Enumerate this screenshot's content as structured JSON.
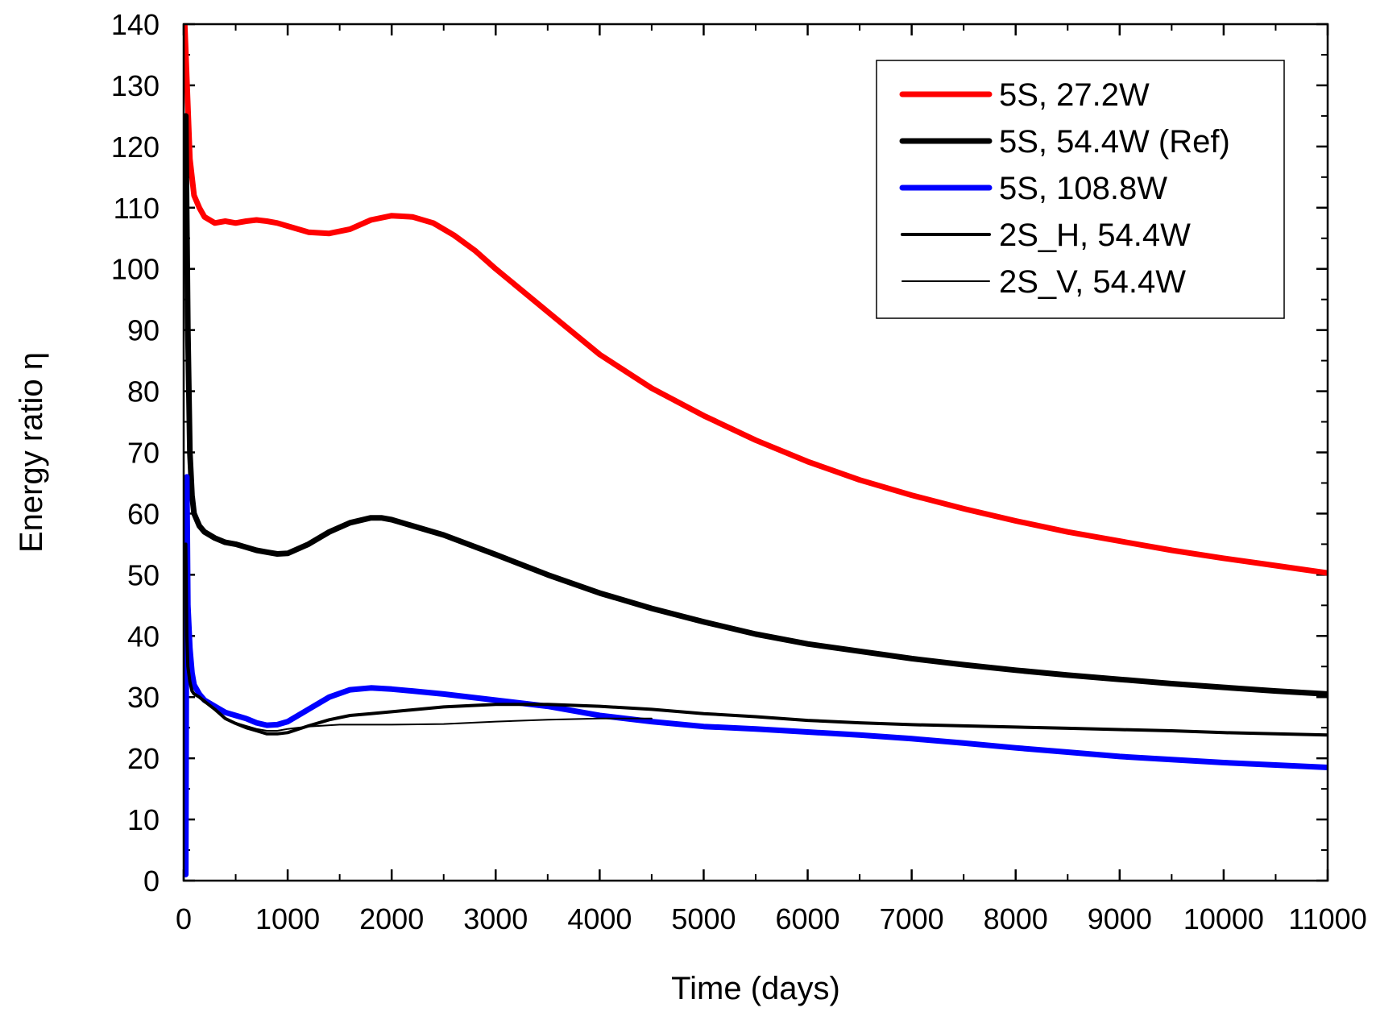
{
  "chart_data": {
    "type": "line",
    "title": "",
    "xlabel": "Time (days)",
    "ylabel": "Energy ratio η",
    "xlim": [
      0,
      11000
    ],
    "ylim": [
      0,
      140
    ],
    "x_ticks": [
      0,
      1000,
      2000,
      3000,
      4000,
      5000,
      6000,
      7000,
      8000,
      9000,
      10000,
      11000
    ],
    "y_ticks": [
      0,
      10,
      20,
      30,
      40,
      50,
      60,
      70,
      80,
      90,
      100,
      110,
      120,
      130,
      140
    ],
    "legend_position": "top-right",
    "series": [
      {
        "name": "5S, 27.2W",
        "color": "#ff0000",
        "width": "thick",
        "x": [
          10,
          30,
          60,
          100,
          150,
          200,
          300,
          400,
          500,
          600,
          700,
          800,
          900,
          1000,
          1200,
          1400,
          1600,
          1800,
          2000,
          2200,
          2400,
          2600,
          2800,
          3000,
          3500,
          4000,
          4500,
          5000,
          5500,
          6000,
          6500,
          7000,
          7500,
          8000,
          8500,
          9000,
          9500,
          10000,
          10500,
          11000
        ],
        "y": [
          140,
          131,
          118,
          112,
          110,
          108.5,
          107.5,
          107.8,
          107.5,
          107.8,
          108,
          107.8,
          107.5,
          107,
          106,
          105.8,
          106.5,
          108,
          108.7,
          108.5,
          107.5,
          105.5,
          103,
          100,
          93,
          86,
          80.5,
          76,
          72,
          68.5,
          65.5,
          63,
          60.8,
          58.8,
          57,
          55.5,
          54,
          52.7,
          51.5,
          50.3
        ]
      },
      {
        "name": "5S, 54.4W (Ref)",
        "color": "#000000",
        "width": "thick",
        "x": [
          20,
          40,
          60,
          80,
          100,
          150,
          200,
          300,
          400,
          500,
          600,
          700,
          800,
          900,
          1000,
          1200,
          1400,
          1600,
          1800,
          1900,
          2000,
          2200,
          2500,
          3000,
          3500,
          4000,
          4500,
          5000,
          5500,
          6000,
          6500,
          7000,
          7500,
          8000,
          8500,
          9000,
          9500,
          10000,
          10500,
          11000
        ],
        "y": [
          125,
          90,
          70,
          63,
          60,
          58,
          57,
          56,
          55.3,
          55,
          54.5,
          54,
          53.7,
          53.4,
          53.5,
          55,
          57,
          58.5,
          59.3,
          59.3,
          59,
          58,
          56.5,
          53.3,
          50,
          47,
          44.5,
          42.3,
          40.3,
          38.7,
          37.5,
          36.3,
          35.3,
          34.4,
          33.6,
          32.9,
          32.2,
          31.6,
          31,
          30.5
        ]
      },
      {
        "name": "5S, 108.8W",
        "color": "#0000ff",
        "width": "thick",
        "x": [
          20,
          30,
          40,
          60,
          80,
          100,
          150,
          200,
          300,
          400,
          500,
          600,
          700,
          800,
          900,
          1000,
          1200,
          1400,
          1600,
          1800,
          2000,
          2200,
          2500,
          3000,
          3500,
          4000,
          4500,
          5000,
          5500,
          6000,
          6500,
          7000,
          7500,
          8000,
          8500,
          9000,
          9500,
          10000,
          10500,
          11000
        ],
        "y": [
          1,
          66,
          45,
          38,
          34,
          32,
          30.5,
          29.5,
          28.5,
          27.5,
          27,
          26.5,
          25.8,
          25.4,
          25.5,
          26,
          28,
          30,
          31.2,
          31.5,
          31.3,
          31,
          30.5,
          29.5,
          28.5,
          27,
          26,
          25.2,
          24.8,
          24.3,
          23.8,
          23.2,
          22.5,
          21.7,
          21,
          20.3,
          19.8,
          19.3,
          18.9,
          18.5
        ]
      },
      {
        "name": "2S_H, 54.4W",
        "color": "#000000",
        "width": "medium",
        "x": [
          20,
          30,
          40,
          60,
          80,
          100,
          150,
          200,
          300,
          400,
          500,
          600,
          700,
          800,
          900,
          1000,
          1200,
          1400,
          1600,
          1800,
          2000,
          2500,
          3000,
          3500,
          4000,
          4500,
          5000,
          5500,
          6000,
          6500,
          7000,
          7500,
          8000,
          8500,
          9000,
          9500,
          10000,
          10500,
          11000
        ],
        "y": [
          55,
          40,
          35,
          32.5,
          31,
          30.5,
          30,
          29.3,
          28,
          26.5,
          25.7,
          25,
          24.5,
          24,
          24,
          24.2,
          25.3,
          26.3,
          27,
          27.3,
          27.6,
          28.4,
          28.8,
          28.8,
          28.5,
          28,
          27.3,
          26.8,
          26.2,
          25.8,
          25.5,
          25.3,
          25.1,
          24.9,
          24.7,
          24.5,
          24.2,
          24,
          23.8
        ]
      },
      {
        "name": "2S_V, 54.4W",
        "color": "#000000",
        "width": "thin",
        "x": [
          20,
          40,
          60,
          100,
          150,
          200,
          300,
          400,
          500,
          600,
          700,
          800,
          900,
          1000,
          1200,
          1500,
          2000,
          2500,
          3000,
          3500,
          4000,
          4500
        ],
        "y": [
          50,
          36,
          32.5,
          30.5,
          30,
          29.5,
          28,
          26.5,
          25.8,
          25.3,
          24.8,
          24.5,
          24.5,
          24.8,
          25.2,
          25.5,
          25.5,
          25.6,
          26,
          26.3,
          26.5,
          26.5
        ]
      }
    ]
  }
}
